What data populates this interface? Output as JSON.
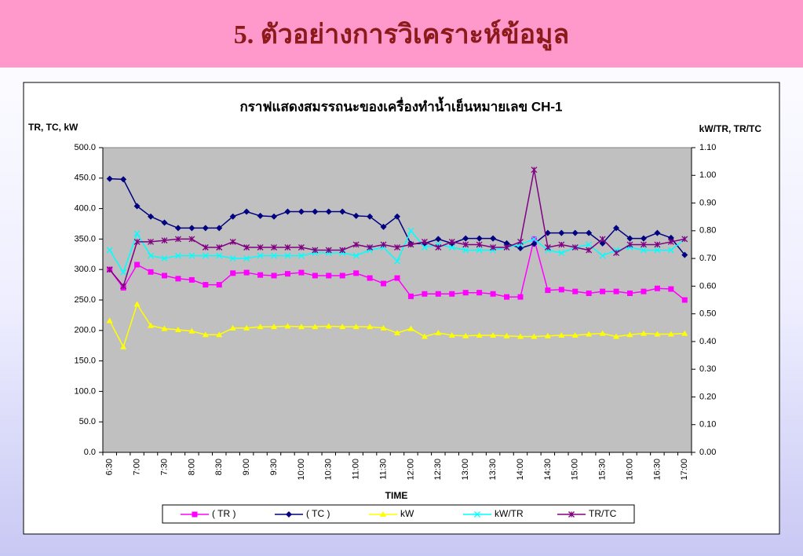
{
  "header": {
    "title": "5. ตัวอย่างการวิเคราะห์ข้อมูล"
  },
  "chart_data": {
    "type": "line",
    "title": "กราฟแสดงสมรรถนะของเครื่องทำน้ำเย็นหมายเลข CH-1",
    "y_label": "TR, TC, kW",
    "y2_label": "kW/TR, TR/TC",
    "x_label": "TIME",
    "categories": [
      "6:30",
      null,
      "7:00",
      null,
      "7:30",
      null,
      "8:00",
      null,
      "8:30",
      null,
      "9:00",
      null,
      "9:30",
      null,
      "10:00",
      null,
      "10:30",
      null,
      "11:00",
      null,
      "11:30",
      null,
      "12:00",
      null,
      "12:30",
      null,
      "13:00",
      null,
      "13:30",
      null,
      "14:00",
      null,
      "14:30",
      null,
      "15:00",
      null,
      "15:30",
      null,
      "16:00",
      null,
      "16:30",
      null,
      "17:00"
    ],
    "ylim": [
      0,
      500
    ],
    "yticks": [
      {
        "value": 0,
        "label": "0.0"
      },
      {
        "value": 50,
        "label": "50.0"
      },
      {
        "value": 100,
        "label": "100.0"
      },
      {
        "value": 150,
        "label": "150.0"
      },
      {
        "value": 200,
        "label": "200.0"
      },
      {
        "value": 250,
        "label": "250.0"
      },
      {
        "value": 300,
        "label": "300.0"
      },
      {
        "value": 350,
        "label": "350.0"
      },
      {
        "value": 400,
        "label": "400.0"
      },
      {
        "value": 450,
        "label": "450.0"
      },
      {
        "value": 500,
        "label": "500.0"
      }
    ],
    "y2lim": [
      0,
      1.1
    ],
    "y2ticks": [
      {
        "value": 0,
        "label": "0.00"
      },
      {
        "value": 0.1,
        "label": "0.10"
      },
      {
        "value": 0.2,
        "label": "0.20"
      },
      {
        "value": 0.3,
        "label": "0.30"
      },
      {
        "value": 0.4,
        "label": "0.40"
      },
      {
        "value": 0.5,
        "label": "0.50"
      },
      {
        "value": 0.6,
        "label": "0.60"
      },
      {
        "value": 0.7,
        "label": "0.70"
      },
      {
        "value": 0.8,
        "label": "0.80"
      },
      {
        "value": 0.9,
        "label": "0.90"
      },
      {
        "value": 1,
        "label": "1.00"
      },
      {
        "value": 1.1,
        "label": "1.10"
      }
    ],
    "grid": false,
    "legend": "bottom",
    "series": [
      {
        "name": "( TR )",
        "color": "#ff00ff",
        "marker": "square",
        "axis": "y",
        "values": [
          300,
          270,
          308,
          296,
          290,
          285,
          283,
          275,
          275,
          294,
          295,
          291,
          290,
          293,
          295,
          290,
          290,
          290,
          294,
          286,
          277,
          286,
          256,
          260,
          260,
          260,
          262,
          262,
          260,
          255,
          255,
          350,
          266,
          267,
          264,
          261,
          264,
          264,
          261,
          264,
          269,
          268,
          250
        ]
      },
      {
        "name": "( TC )",
        "color": "#000080",
        "marker": "diamond",
        "axis": "y",
        "values": [
          449,
          448,
          404,
          387,
          377,
          368,
          368,
          368,
          368,
          387,
          395,
          388,
          387,
          395,
          395,
          395,
          395,
          395,
          388,
          387,
          370,
          387,
          342,
          343,
          350,
          343,
          351,
          351,
          351,
          343,
          335,
          342,
          360,
          360,
          360,
          360,
          343,
          368,
          351,
          351,
          360,
          352,
          324
        ]
      },
      {
        "name": "kW",
        "color": "#ffff00",
        "marker": "triangle",
        "axis": "y",
        "values": [
          216,
          173,
          243,
          208,
          203,
          201,
          199,
          193,
          193,
          204,
          204,
          206,
          206,
          207,
          206,
          206,
          207,
          206,
          206,
          206,
          204,
          196,
          203,
          190,
          196,
          192,
          191,
          192,
          192,
          191,
          190,
          190,
          191,
          192,
          192,
          194,
          195,
          190,
          193,
          195,
          194,
          194,
          195
        ]
      },
      {
        "name": "kW/TR",
        "color": "#00ffff",
        "marker": "x",
        "axis": "y2",
        "values": [
          0.73,
          0.65,
          0.79,
          0.71,
          0.7,
          0.71,
          0.71,
          0.71,
          0.71,
          0.7,
          0.7,
          0.71,
          0.71,
          0.71,
          0.71,
          0.72,
          0.72,
          0.72,
          0.71,
          0.73,
          0.74,
          0.69,
          0.8,
          0.74,
          0.75,
          0.74,
          0.73,
          0.73,
          0.73,
          0.74,
          0.75,
          0.77,
          0.73,
          0.72,
          0.74,
          0.75,
          0.71,
          0.73,
          0.74,
          0.73,
          0.73,
          0.73,
          0.77
        ]
      },
      {
        "name": "TR/TC",
        "color": "#800080",
        "marker": "star",
        "axis": "y2",
        "values": [
          0.66,
          0.6,
          0.76,
          0.76,
          0.765,
          0.77,
          0.77,
          0.74,
          0.74,
          0.76,
          0.74,
          0.74,
          0.74,
          0.74,
          0.74,
          0.73,
          0.73,
          0.73,
          0.75,
          0.74,
          0.75,
          0.74,
          0.75,
          0.76,
          0.74,
          0.76,
          0.75,
          0.75,
          0.74,
          0.74,
          0.76,
          1.02,
          0.74,
          0.75,
          0.74,
          0.73,
          0.77,
          0.72,
          0.75,
          0.75,
          0.75,
          0.76,
          0.77
        ]
      }
    ]
  }
}
